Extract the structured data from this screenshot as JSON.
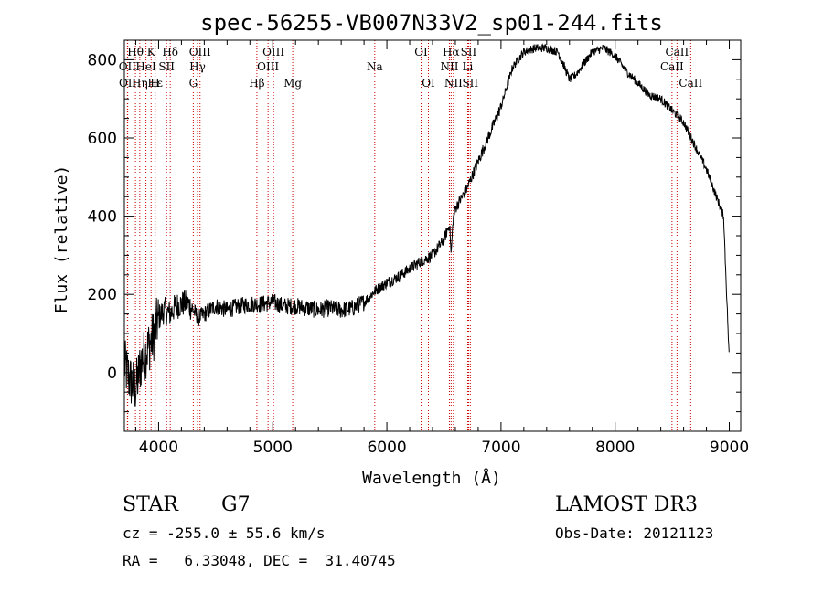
{
  "chart_data": {
    "type": "line",
    "title": "spec-56255-VB007N33V2_sp01-244.fits",
    "xlabel": "Wavelength (Å)",
    "ylabel": "Flux (relative)",
    "xlim": [
      3700,
      9100
    ],
    "ylim": [
      -150,
      850
    ],
    "xticks": [
      4000,
      5000,
      6000,
      7000,
      8000,
      9000
    ],
    "xtick_labels": [
      "4000",
      "5000",
      "6000",
      "7000",
      "8000",
      "9000"
    ],
    "yticks": [
      0,
      200,
      400,
      600,
      800
    ],
    "ytick_labels": [
      "0",
      "200",
      "400",
      "600",
      "800"
    ],
    "series": [
      {
        "name": "flux",
        "x": [
          3700,
          3750,
          3800,
          3850,
          3900,
          3950,
          4000,
          4050,
          4100,
          4150,
          4200,
          4250,
          4300,
          4350,
          4400,
          4500,
          4600,
          4700,
          4800,
          4900,
          5000,
          5100,
          5200,
          5300,
          5400,
          5500,
          5600,
          5700,
          5800,
          5900,
          6000,
          6100,
          6200,
          6300,
          6400,
          6500,
          6550,
          6563,
          6580,
          6600,
          6700,
          6800,
          6900,
          7000,
          7100,
          7200,
          7300,
          7400,
          7500,
          7600,
          7650,
          7700,
          7800,
          7900,
          8000,
          8100,
          8200,
          8300,
          8400,
          8500,
          8600,
          8700,
          8800,
          8900,
          8950,
          9000
        ],
        "y": [
          20,
          -20,
          -40,
          30,
          60,
          90,
          140,
          160,
          150,
          170,
          175,
          180,
          160,
          140,
          150,
          170,
          160,
          170,
          175,
          175,
          180,
          170,
          170,
          165,
          160,
          165,
          160,
          165,
          180,
          210,
          230,
          245,
          265,
          285,
          300,
          340,
          380,
          300,
          390,
          420,
          470,
          540,
          610,
          680,
          780,
          820,
          830,
          830,
          820,
          750,
          760,
          780,
          820,
          830,
          810,
          770,
          740,
          710,
          700,
          670,
          640,
          580,
          520,
          440,
          400,
          30
        ]
      }
    ],
    "spectral_lines": [
      {
        "label": "Hθ",
        "wavelength": 3797,
        "row": 1
      },
      {
        "label": "OII",
        "wavelength": 3727,
        "row": 2
      },
      {
        "label": "OII",
        "wavelength": 3729,
        "row": 3
      },
      {
        "label": "K",
        "wavelength": 3934,
        "row": 1
      },
      {
        "label": "HeI",
        "wavelength": 3889,
        "row": 2
      },
      {
        "label": "Hη",
        "wavelength": 3835,
        "row": 3
      },
      {
        "label": "Hε",
        "wavelength": 3970,
        "row": 3
      },
      {
        "label": "H",
        "wavelength": 3968,
        "row": 3
      },
      {
        "label": "Hδ",
        "wavelength": 4102,
        "row": 1
      },
      {
        "label": "SII",
        "wavelength": 4070,
        "row": 2
      },
      {
        "label": "OIII",
        "wavelength": 4363,
        "row": 1
      },
      {
        "label": "Hγ",
        "wavelength": 4341,
        "row": 2
      },
      {
        "label": "G",
        "wavelength": 4304,
        "row": 3
      },
      {
        "label": "OIII",
        "wavelength": 5007,
        "row": 1
      },
      {
        "label": "OIII",
        "wavelength": 4959,
        "row": 2
      },
      {
        "label": "Hβ",
        "wavelength": 4861,
        "row": 3
      },
      {
        "label": "Mg",
        "wavelength": 5175,
        "row": 3
      },
      {
        "label": "Na",
        "wavelength": 5894,
        "row": 2
      },
      {
        "label": "OI",
        "wavelength": 6300,
        "row": 1
      },
      {
        "label": "OI",
        "wavelength": 6364,
        "row": 3
      },
      {
        "label": "Hα",
        "wavelength": 6563,
        "row": 1
      },
      {
        "label": "SII",
        "wavelength": 6716,
        "row": 1
      },
      {
        "label": "NII",
        "wavelength": 6548,
        "row": 2
      },
      {
        "label": "Li",
        "wavelength": 6708,
        "row": 2
      },
      {
        "label": "NII",
        "wavelength": 6583,
        "row": 3
      },
      {
        "label": "SII",
        "wavelength": 6731,
        "row": 3
      },
      {
        "label": "CaII",
        "wavelength": 8542,
        "row": 1
      },
      {
        "label": "CaII",
        "wavelength": 8498,
        "row": 2
      },
      {
        "label": "CaII",
        "wavelength": 8662,
        "row": 3
      }
    ]
  },
  "info": {
    "object_class": "STAR",
    "subclass": "G7",
    "survey": "LAMOST DR3",
    "cz": "cz = -255.0 ± 55.6 km/s",
    "obs_date": "Obs-Date: 20121123",
    "radec": "RA =   6.33048, DEC =  31.40745"
  },
  "colors": {
    "line_marker": "#cc0000",
    "spectrum": "#000000"
  }
}
